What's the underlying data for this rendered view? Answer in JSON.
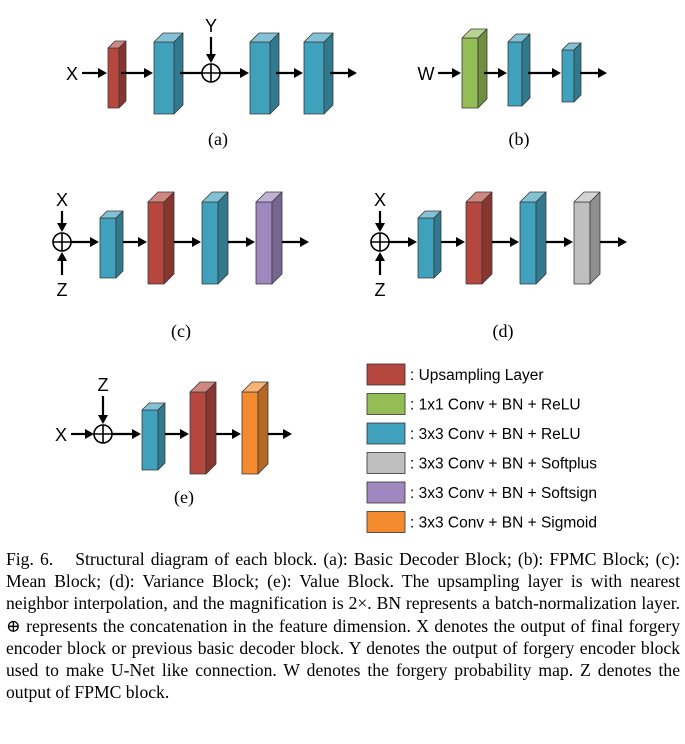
{
  "colors": {
    "upsampling": "#b5473f",
    "conv_relu_1x1": "#94bd55",
    "conv_relu_3x3": "#40a1bd",
    "conv_softplus": "#bfbfbf",
    "conv_softsign": "#9e88bf",
    "conv_sigmoid": "#f48a2e"
  },
  "panels": {
    "a": {
      "label": "(a)",
      "input_x": "X",
      "input_y": "Y"
    },
    "b": {
      "label": "(b)",
      "input_w": "W"
    },
    "c": {
      "label": "(c)",
      "input_x": "X",
      "input_z": "Z"
    },
    "d": {
      "label": "(d)",
      "input_x": "X",
      "input_z": "Z"
    },
    "e": {
      "label": "(e)",
      "input_x": "X",
      "input_z": "Z"
    }
  },
  "legend": [
    {
      "text": ": Upsampling Layer",
      "color": "#b5473f"
    },
    {
      "text": ": 1x1 Conv + BN + ReLU",
      "color": "#94bd55"
    },
    {
      "text": ": 3x3 Conv + BN + ReLU",
      "color": "#40a1bd"
    },
    {
      "text": ": 3x3 Conv + BN + Softplus",
      "color": "#bfbfbf"
    },
    {
      "text": ": 3x3 Conv + BN + Softsign",
      "color": "#9e88bf"
    },
    {
      "text": ": 3x3 Conv + BN + Sigmoid",
      "color": "#f48a2e"
    }
  ],
  "caption": {
    "fig_label": "Fig. 6.",
    "text": "Structural diagram of each block. (a): Basic Decoder Block; (b): FPMC Block; (c): Mean Block; (d): Variance Block; (e): Value Block. The upsampling layer is with nearest neighbor interpolation, and the magnification is 2×. BN represents a batch-normalization layer. ⊕ represents the concatenation in the feature dimension. X denotes the output of final forgery encoder block or previous basic decoder block. Y denotes the output of forgery encoder block used to make U-Net like connection. W denotes the forgery probability map. Z denotes the output of FPMC block."
  }
}
